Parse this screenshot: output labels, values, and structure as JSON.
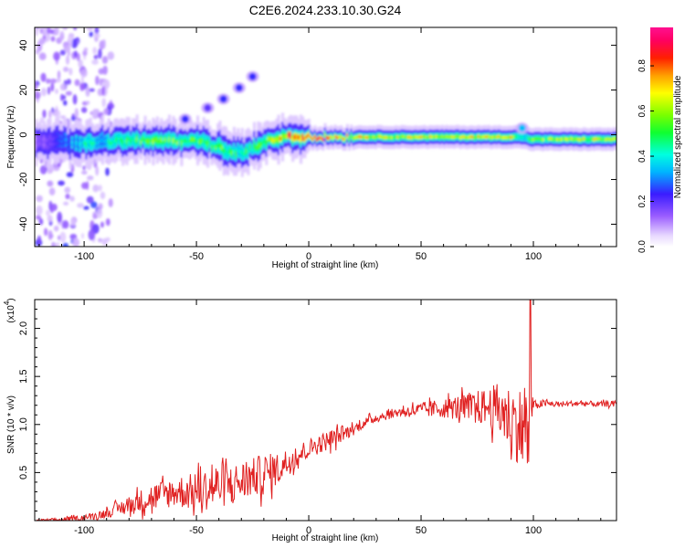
{
  "title": "C2E6.2024.233.10.30.G24",
  "colors": {
    "snr_line": "#e02020",
    "axis": "#000000",
    "background": "#ffffff"
  },
  "chart_data": [
    {
      "type": "heatmap",
      "xlabel": "Height of straight line (km)",
      "ylabel": "Frequency (Hz)",
      "xlim": [
        -122,
        137
      ],
      "ylim": [
        -50,
        48
      ],
      "xticks": [
        -100,
        -50,
        0,
        50,
        100
      ],
      "yticks": [
        -40,
        -20,
        0,
        20,
        40
      ],
      "grid": false,
      "colorbar": {
        "label": "Normalized spectral amplitude",
        "range": [
          0,
          0.97
        ],
        "ticks": [
          "0.0",
          "0.2",
          "0.4",
          "0.6",
          "0.8"
        ],
        "tick_values": [
          0,
          0.2,
          0.4,
          0.6,
          0.8
        ],
        "colormap": "rainbow (white-magenta-blue-cyan-green-yellow-red-magenta)"
      },
      "ridge": {
        "description_points_x": [
          -122,
          -110,
          -100,
          -90,
          -80,
          -70,
          -60,
          -50,
          -40,
          -35,
          -30,
          -25,
          -20,
          -15,
          -10,
          0,
          10,
          20,
          40,
          60,
          80,
          90,
          95,
          98,
          110,
          137
        ],
        "center_frequency": [
          -3,
          -3,
          -4,
          -3,
          -2,
          -3,
          -3,
          -2,
          -6,
          -8,
          -8,
          -6,
          -3,
          -2,
          -1,
          -1,
          -1,
          -1,
          -1,
          -1,
          -1,
          -1,
          -1,
          -2,
          -2,
          -2
        ],
        "peak_amplitude": [
          0.15,
          0.3,
          0.45,
          0.45,
          0.55,
          0.6,
          0.6,
          0.55,
          0.6,
          0.55,
          0.5,
          0.55,
          0.6,
          0.7,
          0.85,
          0.9,
          0.85,
          0.75,
          0.7,
          0.7,
          0.75,
          0.8,
          0.4,
          0.6,
          0.65,
          0.7
        ]
      },
      "side_features": [
        {
          "x": -55,
          "y": 7,
          "amplitude": 0.25
        },
        {
          "x": -45,
          "y": 12,
          "amplitude": 0.2
        },
        {
          "x": -38,
          "y": 16,
          "amplitude": 0.25
        },
        {
          "x": -31,
          "y": 21,
          "amplitude": 0.25
        },
        {
          "x": -25,
          "y": 26,
          "amplitude": 0.25
        },
        {
          "x": 95,
          "y": 3,
          "amplitude": 0.35
        }
      ]
    },
    {
      "type": "line",
      "xlabel": "Height of straight line (km)",
      "ylabel": "SNR (10 * v/v)",
      "scale_label": "(x10",
      "scale_exponent": "4",
      "xlim": [
        -122,
        137
      ],
      "ylim": [
        0,
        2.3
      ],
      "xticks": [
        -100,
        -50,
        0,
        50,
        100
      ],
      "yticks": [
        0.5,
        1.0,
        1.5,
        2.0
      ],
      "ytick_labels": [
        "0.5",
        "1.0",
        "1.5",
        "2.0"
      ],
      "grid": false,
      "series": [
        {
          "color": "#e02020",
          "x": [
            -122,
            -110,
            -100,
            -95,
            -90,
            -85,
            -80,
            -75,
            -70,
            -65,
            -60,
            -55,
            -50,
            -45,
            -40,
            -35,
            -30,
            -25,
            -20,
            -15,
            -10,
            -5,
            0,
            5,
            10,
            15,
            20,
            25,
            30,
            40,
            50,
            60,
            70,
            80,
            85,
            90,
            93,
            95,
            97,
            98,
            99,
            100,
            105,
            110,
            120,
            130,
            137
          ],
          "mean": [
            0.0,
            0.01,
            0.03,
            0.05,
            0.08,
            0.12,
            0.16,
            0.2,
            0.24,
            0.27,
            0.3,
            0.3,
            0.3,
            0.33,
            0.36,
            0.38,
            0.4,
            0.45,
            0.48,
            0.52,
            0.6,
            0.68,
            0.75,
            0.8,
            0.85,
            0.9,
            0.95,
            1.02,
            1.07,
            1.13,
            1.15,
            1.17,
            1.18,
            1.18,
            1.15,
            1.05,
            1.0,
            0.95,
            0.9,
            0.8,
            1.1,
            1.2,
            1.22,
            1.21,
            1.22,
            1.21,
            1.22
          ],
          "spread": [
            0.01,
            0.02,
            0.03,
            0.04,
            0.05,
            0.07,
            0.1,
            0.12,
            0.15,
            0.15,
            0.16,
            0.18,
            0.2,
            0.22,
            0.25,
            0.2,
            0.22,
            0.2,
            0.22,
            0.18,
            0.15,
            0.12,
            0.1,
            0.1,
            0.1,
            0.08,
            0.06,
            0.05,
            0.05,
            0.05,
            0.08,
            0.1,
            0.15,
            0.2,
            0.3,
            0.35,
            0.4,
            0.45,
            0.45,
            0.5,
            0.3,
            0.05,
            0.04,
            0.03,
            0.03,
            0.03,
            0.03
          ]
        }
      ],
      "peak": {
        "x": 98.5,
        "y": 2.3
      }
    }
  ]
}
